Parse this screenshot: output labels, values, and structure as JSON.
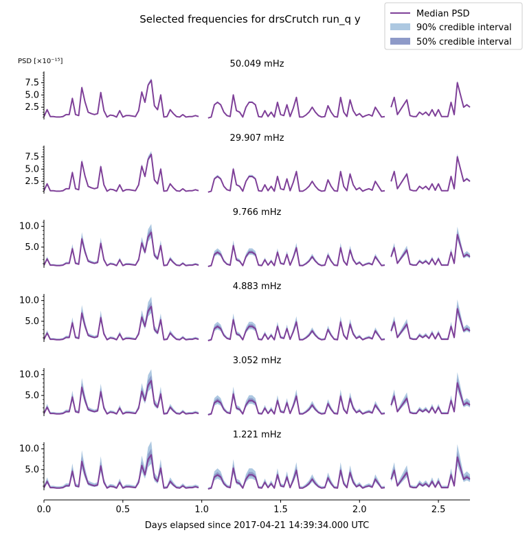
{
  "figure": {
    "title": "Selected frequencies for drsCrutch run_q y",
    "xlabel": "Days elapsed since 2017-04-21 14:39:34.000 UTC",
    "ylabel": "PSD [×10⁻¹⁵]",
    "legend": {
      "placement": "top-right",
      "items": [
        {
          "label": "Median PSD",
          "kind": "line",
          "color": "#7e3f98"
        },
        {
          "label": "90% credible interval",
          "kind": "band",
          "color": "#adc8e1"
        },
        {
          "label": "50% credible interval",
          "kind": "band",
          "color": "#8e9ac8"
        }
      ]
    },
    "colors": {
      "median": "#7e3f98",
      "ci90": "#adc8e1",
      "ci50": "#8e9ac8"
    }
  },
  "chart_data": {
    "type": "line",
    "x_range": [
      0.0,
      2.7
    ],
    "x_ticks": [
      "0.0",
      "0.5",
      "1.0",
      "1.5",
      "2.0",
      "2.5"
    ],
    "x_tick_values": [
      0.0,
      0.5,
      1.0,
      1.5,
      2.0,
      2.5
    ],
    "gaps": [
      [
        0.98,
        1.04
      ],
      [
        2.17,
        2.2
      ]
    ],
    "segments": [
      {
        "x": [
          0.0,
          0.02,
          0.04,
          0.06,
          0.08,
          0.1,
          0.12,
          0.14,
          0.16,
          0.18,
          0.2,
          0.22,
          0.24,
          0.26,
          0.28,
          0.3,
          0.32,
          0.34,
          0.36,
          0.38,
          0.4,
          0.42,
          0.44,
          0.46,
          0.48,
          0.5,
          0.52,
          0.54,
          0.56,
          0.58,
          0.6,
          0.62,
          0.64,
          0.66,
          0.68,
          0.7,
          0.72,
          0.74,
          0.76,
          0.78,
          0.8,
          0.82,
          0.84,
          0.86,
          0.88,
          0.9,
          0.92,
          0.94,
          0.96,
          0.98
        ],
        "shape": [
          0.6,
          2.0,
          0.6,
          0.6,
          0.5,
          0.5,
          0.6,
          1.0,
          1.0,
          4.3,
          1.0,
          0.8,
          6.5,
          3.6,
          1.5,
          1.2,
          1.0,
          1.2,
          5.5,
          1.8,
          0.5,
          0.9,
          0.8,
          0.5,
          1.8,
          0.5,
          0.8,
          0.8,
          0.7,
          0.6,
          1.8,
          5.6,
          3.5,
          7.0,
          8.0,
          2.8,
          2.0,
          5.0,
          0.5,
          0.6,
          2.0,
          1.2,
          0.6,
          0.5,
          1.0,
          0.5,
          0.6,
          0.6,
          0.8,
          0.6
        ]
      },
      {
        "x": [
          1.04,
          1.06,
          1.08,
          1.1,
          1.12,
          1.14,
          1.16,
          1.18,
          1.2,
          1.22,
          1.24,
          1.26,
          1.28,
          1.3,
          1.32,
          1.34,
          1.36,
          1.38,
          1.4,
          1.42,
          1.44,
          1.46,
          1.48,
          1.5,
          1.52,
          1.54,
          1.56,
          1.58,
          1.6,
          1.62,
          1.64,
          1.66,
          1.68,
          1.7,
          1.72,
          1.74,
          1.76,
          1.78,
          1.8,
          1.82,
          1.84,
          1.86,
          1.88,
          1.9,
          1.92,
          1.94,
          1.96,
          1.98,
          2.0,
          2.02,
          2.04,
          2.06,
          2.08,
          2.1,
          2.12,
          2.14,
          2.16
        ],
        "shape": [
          0.3,
          0.5,
          3.0,
          3.5,
          3.0,
          1.5,
          0.8,
          0.6,
          5.0,
          1.8,
          1.5,
          0.5,
          2.5,
          3.5,
          3.5,
          3.0,
          0.6,
          0.5,
          1.8,
          0.6,
          1.5,
          0.5,
          3.5,
          1.0,
          0.8,
          3.0,
          0.6,
          2.3,
          4.5,
          0.5,
          0.5,
          0.9,
          1.5,
          2.5,
          1.5,
          0.8,
          0.5,
          0.6,
          2.8,
          1.5,
          0.6,
          0.5,
          4.5,
          1.5,
          0.6,
          4.0,
          1.8,
          0.8,
          1.2,
          0.5,
          0.8,
          1.0,
          0.7,
          2.5,
          1.5,
          0.5,
          0.6
        ]
      },
      {
        "x": [
          2.2,
          2.22,
          2.24,
          2.26,
          2.28,
          2.3,
          2.32,
          2.34,
          2.36,
          2.38,
          2.4,
          2.42,
          2.44,
          2.46,
          2.48,
          2.5,
          2.52,
          2.54,
          2.56,
          2.58,
          2.6,
          2.62,
          2.64,
          2.66,
          2.68,
          2.7
        ],
        "shape": [
          2.5,
          4.5,
          1.0,
          2.0,
          3.0,
          4.0,
          0.8,
          0.6,
          0.6,
          1.5,
          1.0,
          1.5,
          0.8,
          2.0,
          0.7,
          2.0,
          0.6,
          0.6,
          0.6,
          3.5,
          1.0,
          7.5,
          5.0,
          2.5,
          3.0,
          2.5
        ]
      }
    ],
    "panels": [
      {
        "label": "50.049 mHz",
        "scale": 1.0,
        "band90": 0.05,
        "band50": 0.03,
        "ylim": [
          0,
          9.8
        ],
        "yticks": [
          2.5,
          5.0,
          7.5
        ],
        "ytick_labels": [
          "2.5",
          "5.0",
          "7.5"
        ]
      },
      {
        "label": "29.907 mHz",
        "scale": 1.0,
        "band90": 0.08,
        "band50": 0.04,
        "ylim": [
          0,
          9.8
        ],
        "yticks": [
          2.5,
          5.0,
          7.5
        ],
        "ytick_labels": [
          "2.5",
          "5.0",
          "7.5"
        ]
      },
      {
        "label": "9.766 mHz",
        "scale": 1.07,
        "band90": 0.22,
        "band50": 0.1,
        "ylim": [
          0,
          11.6
        ],
        "yticks": [
          5.0,
          10.0
        ],
        "ytick_labels": [
          "5.0",
          "10.0"
        ]
      },
      {
        "label": "4.883 mHz",
        "scale": 1.07,
        "band90": 0.26,
        "band50": 0.12,
        "ylim": [
          0,
          11.6
        ],
        "yticks": [
          5.0,
          10.0
        ],
        "ytick_labels": [
          "5.0",
          "10.0"
        ]
      },
      {
        "label": "3.052 mHz",
        "scale": 1.07,
        "band90": 0.3,
        "band50": 0.14,
        "ylim": [
          0,
          11.6
        ],
        "yticks": [
          5.0,
          10.0
        ],
        "ytick_labels": [
          "5.0",
          "10.0"
        ]
      },
      {
        "label": "1.221 mHz",
        "scale": 1.07,
        "band90": 0.36,
        "band50": 0.16,
        "ylim": [
          0,
          11.6
        ],
        "yticks": [
          5.0,
          10.0
        ],
        "ytick_labels": [
          "5.0",
          "10.0"
        ]
      }
    ]
  }
}
